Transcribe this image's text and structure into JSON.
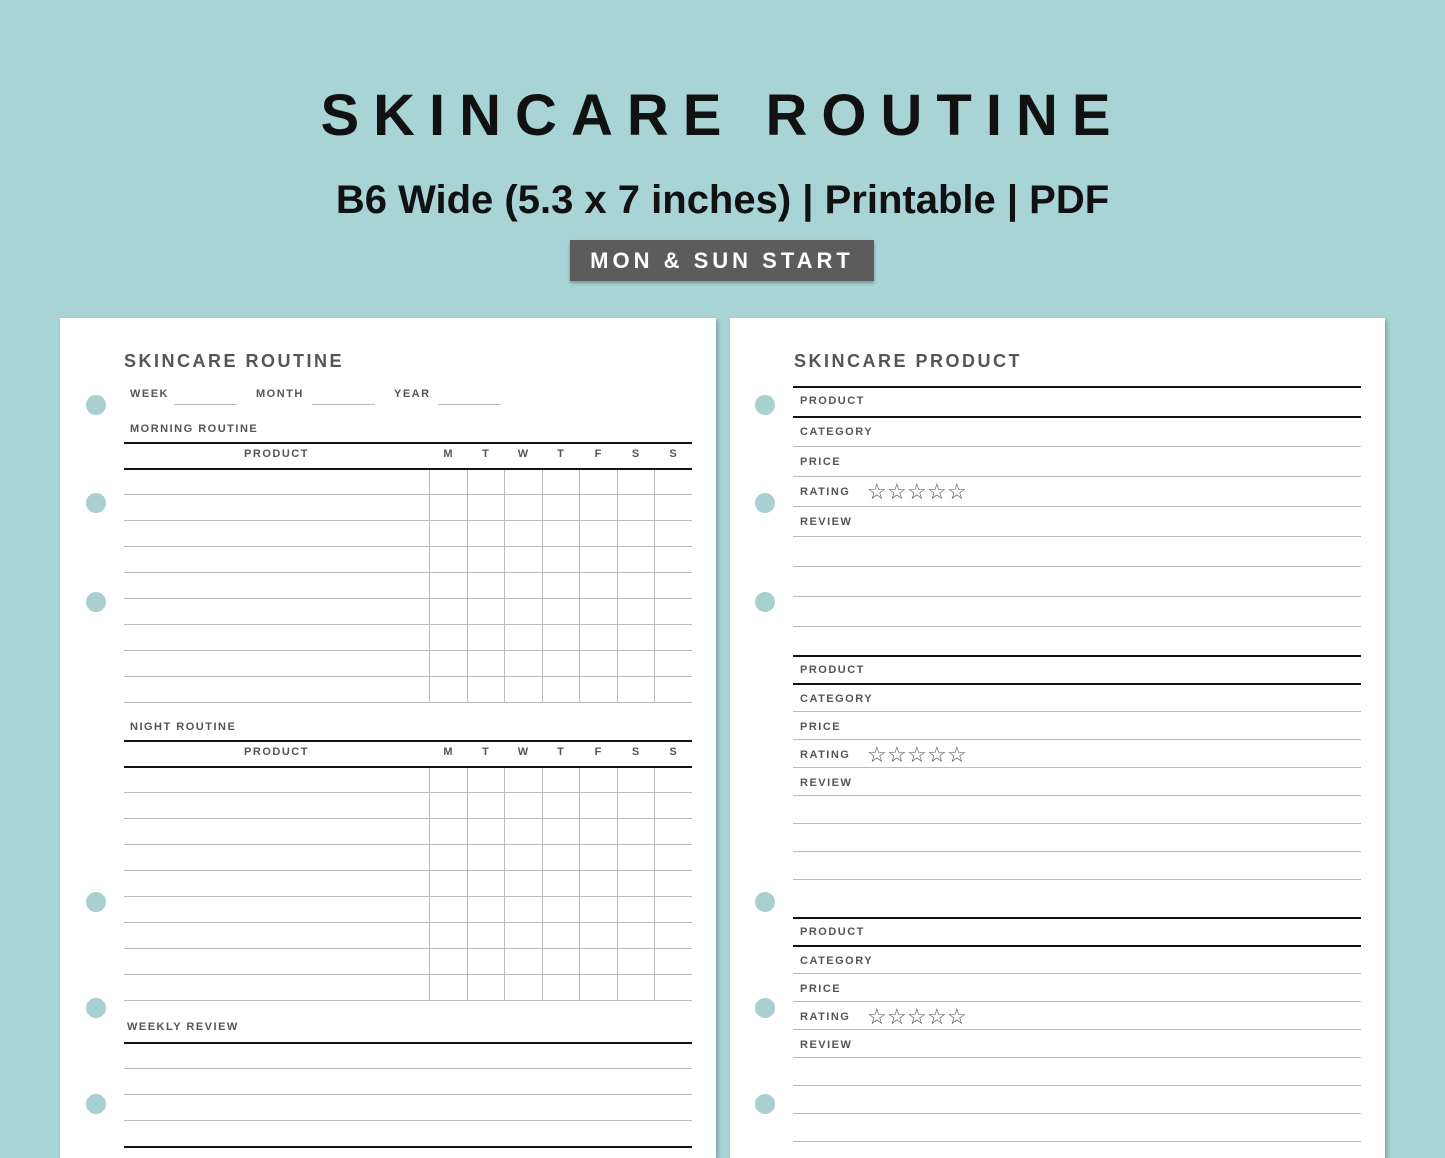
{
  "header": {
    "title": "SKINCARE ROUTINE",
    "subtitle": "B6 Wide (5.3 x 7 inches) | Printable | PDF",
    "badge": "MON & SUN START"
  },
  "left_page": {
    "title": "SKINCARE ROUTINE",
    "week_label": "WEEK",
    "month_label": "MONTH",
    "year_label": "YEAR",
    "morning": {
      "label": "MORNING ROUTINE",
      "product_header": "PRODUCT",
      "days": [
        "M",
        "T",
        "W",
        "T",
        "F",
        "S",
        "S"
      ]
    },
    "night": {
      "label": "NIGHT ROUTINE",
      "product_header": "PRODUCT",
      "days": [
        "M",
        "T",
        "W",
        "T",
        "F",
        "S",
        "S"
      ]
    },
    "weekly_review_label": "WEEKLY REVIEW"
  },
  "right_page": {
    "title": "SKINCARE PRODUCT",
    "blocks": [
      {
        "product": "PRODUCT",
        "category": "CATEGORY",
        "price": "PRICE",
        "rating": "RATING",
        "review": "REVIEW",
        "stars_filled": 0,
        "stars_total": 5
      },
      {
        "product": "PRODUCT",
        "category": "CATEGORY",
        "price": "PRICE",
        "rating": "RATING",
        "review": "REVIEW",
        "stars_filled": 0,
        "stars_total": 5
      },
      {
        "product": "PRODUCT",
        "category": "CATEGORY",
        "price": "PRICE",
        "rating": "RATING",
        "review": "REVIEW",
        "stars_filled": 0,
        "stars_total": 5
      }
    ]
  },
  "colors": {
    "background": "#a8d4d5",
    "badge": "#5c5c5c",
    "hole": "#a9cfd0",
    "label": "#555555"
  }
}
